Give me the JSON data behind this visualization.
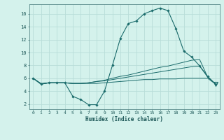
{
  "xlabel": "Humidex (Indice chaleur)",
  "bg_color": "#d4f2ec",
  "grid_color": "#b8ddd8",
  "line_color": "#1a6b6b",
  "x_ticks": [
    0,
    1,
    2,
    3,
    4,
    5,
    6,
    7,
    8,
    9,
    10,
    11,
    12,
    13,
    14,
    15,
    16,
    17,
    18,
    19,
    20,
    21,
    22,
    23
  ],
  "y_ticks": [
    2,
    4,
    6,
    8,
    10,
    12,
    14,
    16
  ],
  "xlim": [
    -0.5,
    23.5
  ],
  "ylim": [
    1.2,
    17.5
  ],
  "line1_x": [
    0,
    1,
    2,
    3,
    4,
    5,
    6,
    7,
    8,
    9,
    10,
    11,
    12,
    13,
    14,
    15,
    16,
    17,
    18,
    19,
    20,
    21,
    22,
    23
  ],
  "line1_y": [
    6.0,
    5.1,
    5.3,
    5.3,
    5.3,
    3.2,
    2.7,
    1.9,
    1.9,
    4.0,
    8.0,
    12.2,
    14.5,
    14.9,
    16.0,
    16.5,
    16.9,
    16.5,
    13.7,
    10.2,
    9.3,
    7.9,
    6.3,
    5.1
  ],
  "line2_x": [
    0,
    1,
    2,
    3,
    4,
    5,
    6,
    7,
    8,
    9,
    10,
    11,
    12,
    13,
    14,
    15,
    16,
    17,
    18,
    19,
    20,
    21,
    22,
    23
  ],
  "line2_y": [
    6.0,
    5.1,
    5.3,
    5.3,
    5.3,
    5.2,
    5.2,
    5.3,
    5.5,
    5.7,
    6.0,
    6.3,
    6.5,
    6.8,
    7.1,
    7.4,
    7.7,
    7.9,
    8.2,
    8.5,
    8.8,
    8.9,
    6.2,
    5.1
  ],
  "line3_x": [
    0,
    1,
    2,
    3,
    4,
    5,
    6,
    7,
    8,
    9,
    10,
    11,
    12,
    13,
    14,
    15,
    16,
    17,
    18,
    19,
    20,
    21,
    22,
    23
  ],
  "line3_y": [
    6.0,
    5.1,
    5.3,
    5.3,
    5.3,
    5.2,
    5.2,
    5.3,
    5.5,
    5.6,
    5.8,
    6.0,
    6.2,
    6.4,
    6.6,
    6.8,
    7.0,
    7.2,
    7.4,
    7.6,
    7.8,
    7.9,
    6.2,
    5.1
  ],
  "line4_x": [
    0,
    1,
    2,
    3,
    4,
    5,
    6,
    7,
    8,
    9,
    10,
    11,
    12,
    13,
    14,
    15,
    16,
    17,
    18,
    19,
    20,
    21,
    22,
    23
  ],
  "line4_y": [
    6.0,
    5.2,
    5.3,
    5.3,
    5.3,
    5.2,
    5.2,
    5.2,
    5.2,
    5.3,
    5.4,
    5.5,
    5.6,
    5.7,
    5.8,
    5.8,
    5.9,
    5.9,
    5.9,
    6.0,
    6.0,
    6.0,
    6.0,
    5.1
  ]
}
